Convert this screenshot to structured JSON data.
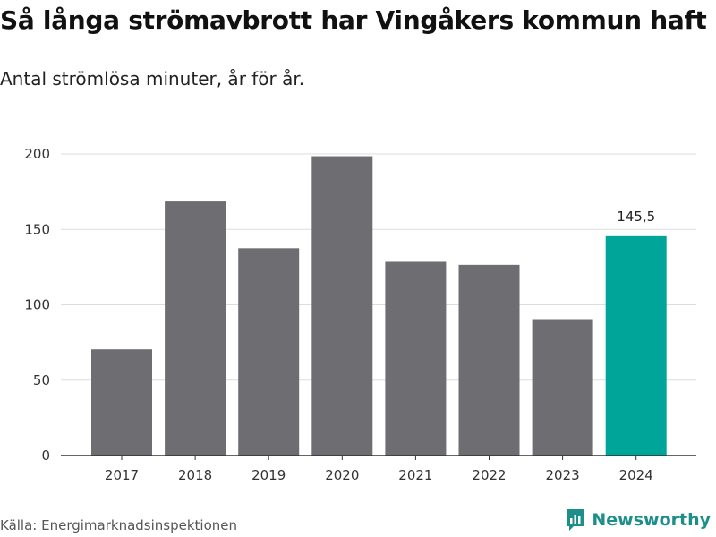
{
  "header": {
    "title": "Så långa strömavbrott har Vingåkers kommun haft",
    "subtitle": "Antal strömlösa minuter, år för år."
  },
  "footer": {
    "source": "Källa: Energimarknadsinspektionen",
    "brand": "Newsworthy"
  },
  "colors": {
    "bar": "#6e6d72",
    "highlight": "#00a59a",
    "grid": "#dddddd",
    "axis": "#333333"
  },
  "chart_data": {
    "type": "bar",
    "title": "Så långa strömavbrott har Vingåkers kommun haft",
    "subtitle": "Antal strömlösa minuter, år för år.",
    "xlabel": "",
    "ylabel": "",
    "categories": [
      "2017",
      "2018",
      "2019",
      "2020",
      "2021",
      "2022",
      "2023",
      "2024"
    ],
    "values": [
      70.5,
      168.5,
      137.5,
      198.5,
      128.5,
      126.5,
      90.5,
      145.5
    ],
    "highlight_index": 7,
    "data_labels": [
      {
        "index": 7,
        "text": "145,5"
      }
    ],
    "ylim": [
      0,
      200
    ],
    "yticks": [
      "0",
      "50",
      "100",
      "150",
      "200"
    ],
    "grid": true
  }
}
